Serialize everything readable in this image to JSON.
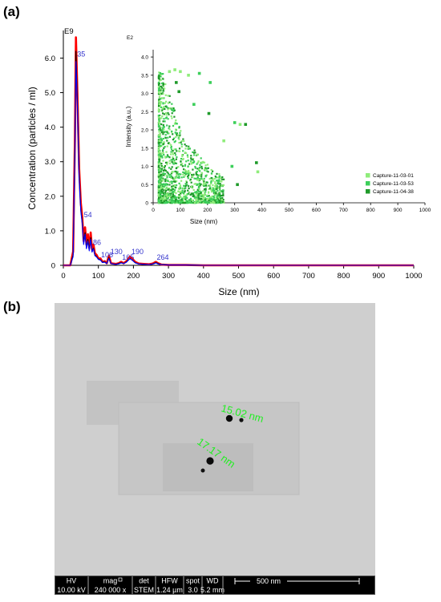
{
  "panel_a": {
    "label": "(a)",
    "main_chart": {
      "type": "line",
      "exponent_label": "E9",
      "xlabel": "Size (nm)",
      "ylabel": "Concentration (particles / ml)",
      "xlim": [
        0,
        1000
      ],
      "ylim": [
        0,
        6.8
      ],
      "x_ticks": [
        "0",
        "100",
        "200",
        "300",
        "400",
        "500",
        "600",
        "700",
        "800",
        "900",
        "1000"
      ],
      "y_ticks": [
        "0",
        "1.0",
        "2.0",
        "3.0",
        "4.0",
        "5.0",
        "6.0"
      ],
      "peak_labels": [
        {
          "text": "35",
          "x": 35,
          "y": 6.0
        },
        {
          "text": "54",
          "x": 54,
          "y": 1.35
        },
        {
          "text": "86",
          "x": 80,
          "y": 0.55
        },
        {
          "text": "106",
          "x": 103,
          "y": 0.18
        },
        {
          "text": "130",
          "x": 130,
          "y": 0.28
        },
        {
          "text": "165",
          "x": 163,
          "y": 0.12
        },
        {
          "text": "190",
          "x": 190,
          "y": 0.28
        },
        {
          "text": "264",
          "x": 262,
          "y": 0.12
        }
      ],
      "series": [
        {
          "color": "#ff0000",
          "x": [
            0,
            20,
            28,
            33,
            36,
            40,
            45,
            50,
            54,
            58,
            62,
            66,
            70,
            74,
            78,
            82,
            86,
            90,
            95,
            100,
            106,
            112,
            118,
            124,
            130,
            136,
            142,
            150,
            158,
            165,
            172,
            180,
            185,
            190,
            196,
            205,
            215,
            230,
            245,
            255,
            260,
            264,
            270,
            280,
            300,
            350,
            400,
            500,
            600,
            700,
            800,
            900,
            1000
          ],
          "y": [
            0,
            0,
            0.4,
            3.6,
            6.6,
            5.0,
            2.8,
            1.8,
            1.4,
            0.7,
            1.1,
            0.6,
            0.9,
            0.5,
            0.95,
            0.45,
            0.6,
            0.35,
            0.3,
            0.2,
            0.2,
            0.1,
            0.12,
            0.06,
            0.28,
            0.06,
            0.05,
            0.04,
            0.06,
            0.1,
            0.06,
            0.12,
            0.18,
            0.25,
            0.2,
            0.1,
            0.05,
            0.04,
            0.03,
            0.05,
            0.08,
            0.1,
            0.06,
            0.02,
            0.01,
            0.01,
            0,
            0,
            0,
            0,
            0,
            0,
            0
          ]
        },
        {
          "color": "#000000",
          "x": [
            0,
            20,
            28,
            33,
            36,
            40,
            45,
            50,
            54,
            58,
            62,
            66,
            70,
            74,
            78,
            82,
            86,
            90,
            95,
            100,
            106,
            112,
            118,
            124,
            130,
            136,
            142,
            150,
            158,
            165,
            172,
            180,
            185,
            190,
            196,
            205,
            215,
            230,
            245,
            255,
            260,
            264,
            270,
            280,
            300,
            350,
            400,
            500,
            600,
            700,
            800,
            900,
            1000
          ],
          "y": [
            0,
            0,
            0.3,
            3.4,
            6.2,
            4.8,
            2.6,
            1.6,
            1.25,
            0.65,
            0.95,
            0.5,
            0.75,
            0.45,
            0.8,
            0.4,
            0.5,
            0.3,
            0.25,
            0.18,
            0.16,
            0.09,
            0.1,
            0.05,
            0.22,
            0.05,
            0.04,
            0.03,
            0.05,
            0.08,
            0.05,
            0.1,
            0.15,
            0.2,
            0.16,
            0.08,
            0.04,
            0.03,
            0.02,
            0.04,
            0.06,
            0.08,
            0.05,
            0.02,
            0.01,
            0.01,
            0,
            0,
            0,
            0,
            0,
            0,
            0
          ]
        },
        {
          "color": "#0000ff",
          "x": [
            0,
            20,
            28,
            33,
            36,
            40,
            45,
            50,
            54,
            58,
            62,
            66,
            70,
            74,
            78,
            82,
            86,
            90,
            95,
            100,
            106,
            112,
            118,
            124,
            130,
            136,
            142,
            150,
            158,
            165,
            172,
            180,
            185,
            190,
            196,
            205,
            215,
            230,
            245,
            255,
            260,
            264,
            270,
            280,
            300,
            350,
            400,
            500,
            600,
            700,
            800,
            900,
            1000
          ],
          "y": [
            0,
            0,
            0.25,
            3.2,
            5.9,
            4.6,
            2.5,
            1.55,
            1.2,
            0.6,
            0.9,
            0.48,
            0.7,
            0.42,
            0.75,
            0.38,
            0.48,
            0.28,
            0.24,
            0.17,
            0.15,
            0.08,
            0.09,
            0.05,
            0.2,
            0.05,
            0.04,
            0.03,
            0.04,
            0.07,
            0.05,
            0.09,
            0.14,
            0.19,
            0.15,
            0.07,
            0.04,
            0.03,
            0.02,
            0.04,
            0.05,
            0.07,
            0.04,
            0.02,
            0.01,
            0.01,
            0,
            0,
            0,
            0,
            0,
            0,
            0
          ]
        }
      ]
    },
    "inset_chart": {
      "type": "scatter",
      "exponent_label": "E2",
      "xlabel": "Size (nm)",
      "ylabel": "Intensity (a.u.)",
      "xlim": [
        0,
        1000
      ],
      "ylim": [
        0,
        4.2
      ],
      "x_ticks": [
        "0",
        "100",
        "200",
        "300",
        "400",
        "500",
        "600",
        "700",
        "800",
        "900",
        "1000"
      ],
      "y_ticks": [
        "0",
        "0.5",
        "1.0",
        "1.5",
        "2.0",
        "2.5",
        "3.0",
        "3.5",
        "4.0"
      ],
      "legend_position": "bottom-right",
      "series": [
        {
          "name": "Capture-11-03-01",
          "color": "#8fec7a"
        },
        {
          "name": "Capture-11-03-53",
          "color": "#3ccf5a"
        },
        {
          "name": "Capture-11-04-38",
          "color": "#1f9a2a"
        }
      ],
      "highlight_points": [
        {
          "x": 60,
          "y": 3.6,
          "series": 0
        },
        {
          "x": 80,
          "y": 3.65,
          "series": 0
        },
        {
          "x": 100,
          "y": 3.6,
          "series": 0
        },
        {
          "x": 130,
          "y": 3.5,
          "series": 0
        },
        {
          "x": 170,
          "y": 3.55,
          "series": 1
        },
        {
          "x": 210,
          "y": 3.3,
          "series": 1
        },
        {
          "x": 85,
          "y": 3.3,
          "series": 2
        },
        {
          "x": 95,
          "y": 3.05,
          "series": 2
        },
        {
          "x": 205,
          "y": 2.45,
          "series": 2
        },
        {
          "x": 150,
          "y": 2.7,
          "series": 1
        },
        {
          "x": 300,
          "y": 2.2,
          "series": 1
        },
        {
          "x": 320,
          "y": 2.15,
          "series": 0
        },
        {
          "x": 340,
          "y": 2.15,
          "series": 2
        },
        {
          "x": 260,
          "y": 1.7,
          "series": 0
        },
        {
          "x": 290,
          "y": 1.0,
          "series": 1
        },
        {
          "x": 380,
          "y": 1.1,
          "series": 2
        },
        {
          "x": 385,
          "y": 0.85,
          "series": 0
        },
        {
          "x": 240,
          "y": 0.6,
          "series": 1
        },
        {
          "x": 310,
          "y": 0.5,
          "series": 2
        }
      ]
    }
  },
  "panel_b": {
    "label": "(b)",
    "measurements": [
      "15.02 nm",
      "17.17 nm"
    ],
    "info_bar": {
      "headers": [
        "HV",
        "mag",
        "det",
        "HFW",
        "spot",
        "WD"
      ],
      "values": [
        "10.00 kV",
        "240 000 x",
        "STEM",
        "1.24 µm",
        "3.0",
        "5.2 mm"
      ],
      "scale_label": "500 nm",
      "mag_icon": "square-icon"
    }
  }
}
